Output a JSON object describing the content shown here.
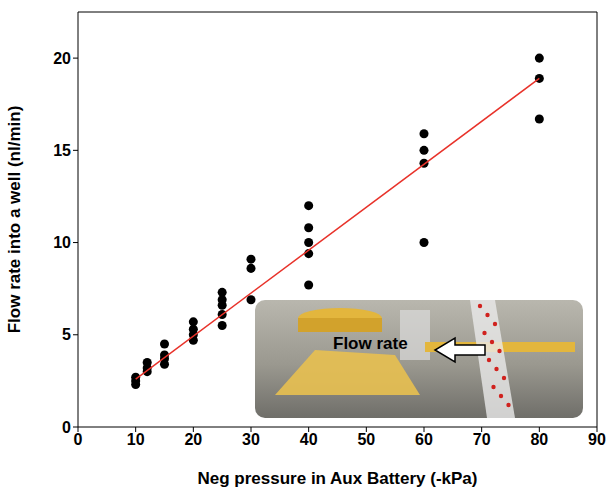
{
  "chart_data": {
    "type": "scatter",
    "x_label": "Neg pressure in Aux Battery (-kPa)",
    "y_label": "Flow rate into a well (nl/min)",
    "xlim": [
      0,
      90
    ],
    "xticks": [
      0,
      10,
      20,
      30,
      40,
      50,
      60,
      70,
      80,
      90
    ],
    "ylim": [
      0,
      22.5
    ],
    "yticks": [
      0,
      5,
      10,
      15,
      20
    ],
    "grid": false,
    "annotations": [
      "Flow rate"
    ],
    "series": [
      {
        "type": "scatter",
        "color": "#000000",
        "marker": "circle",
        "x": [
          10,
          10,
          10,
          12,
          12,
          12,
          15,
          15,
          15,
          15,
          20,
          20,
          20,
          20,
          25,
          25,
          25,
          25,
          25,
          30,
          30,
          30,
          40,
          40,
          40,
          40,
          40,
          60,
          60,
          60,
          60,
          80,
          80,
          80
        ],
        "values": [
          2.3,
          2.5,
          2.7,
          3.0,
          3.2,
          3.5,
          3.4,
          3.7,
          3.9,
          4.5,
          4.7,
          5.0,
          5.3,
          5.7,
          5.5,
          6.1,
          6.6,
          6.9,
          7.3,
          6.9,
          8.6,
          9.1,
          7.7,
          9.4,
          10.0,
          10.8,
          12.0,
          10.0,
          14.3,
          15.0,
          15.9,
          16.7,
          18.9,
          20.0
        ]
      },
      {
        "type": "line",
        "color": "#e8322a",
        "line_style": "solid",
        "x": [
          10,
          80
        ],
        "values": [
          2.6,
          18.9
        ]
      }
    ]
  }
}
